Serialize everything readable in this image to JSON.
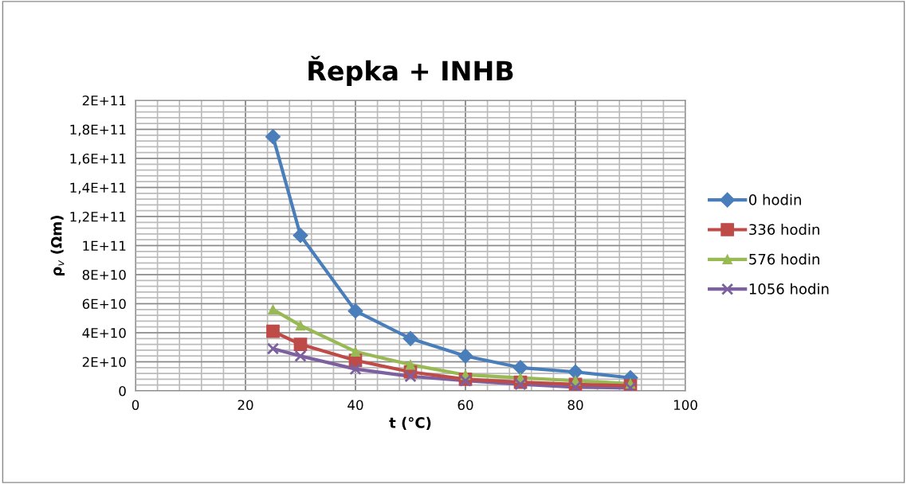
{
  "chart_data": {
    "type": "line",
    "title": "Řepka + INHB",
    "xlabel": "t (°C)",
    "ylabel": "ρ$_{v}$ (Ωm)",
    "xlim": [
      0,
      100
    ],
    "xticks": [
      0,
      20,
      40,
      60,
      80,
      100
    ],
    "ylim": [
      0,
      200000000000
    ],
    "yticks": [
      {
        "value": 0,
        "label": "0"
      },
      {
        "value": 20000000000,
        "label": "2E+10"
      },
      {
        "value": 40000000000,
        "label": "4E+10"
      },
      {
        "value": 60000000000,
        "label": "6E+10"
      },
      {
        "value": 80000000000,
        "label": "8E+10"
      },
      {
        "value": 100000000000,
        "label": "1E+11"
      },
      {
        "value": 120000000000,
        "label": "1,2E+11"
      },
      {
        "value": 140000000000,
        "label": "1,4E+11"
      },
      {
        "value": 160000000000,
        "label": "1,6E+11"
      },
      {
        "value": 180000000000,
        "label": "1,8E+11"
      },
      {
        "value": 200000000000,
        "label": "2E+11"
      }
    ],
    "grid": true,
    "legend": "right",
    "line_style": "solid",
    "x": [
      25,
      30,
      40,
      50,
      60,
      70,
      80,
      90
    ],
    "series": [
      {
        "name": "0 hodin",
        "color": "#4a7ebb",
        "marker": "diamond",
        "values": [
          175000000000,
          107000000000,
          55000000000,
          36000000000,
          24000000000,
          16000000000,
          13000000000,
          9000000000
        ]
      },
      {
        "name": "336 hodin",
        "color": "#be4b48",
        "marker": "square",
        "values": [
          41000000000,
          32000000000,
          21000000000,
          13000000000,
          8000000000,
          6000000000,
          4500000000,
          3500000000
        ]
      },
      {
        "name": "576 hodin",
        "color": "#98b954",
        "marker": "triangle",
        "values": [
          56000000000,
          45000000000,
          27000000000,
          18000000000,
          11000000000,
          9000000000,
          7000000000,
          5000000000
        ]
      },
      {
        "name": "1056 hodin",
        "color": "#7d60a0",
        "marker": "cross",
        "values": [
          29000000000,
          24000000000,
          15000000000,
          10000000000,
          7000000000,
          4500000000,
          2500000000,
          2000000000
        ]
      }
    ]
  }
}
